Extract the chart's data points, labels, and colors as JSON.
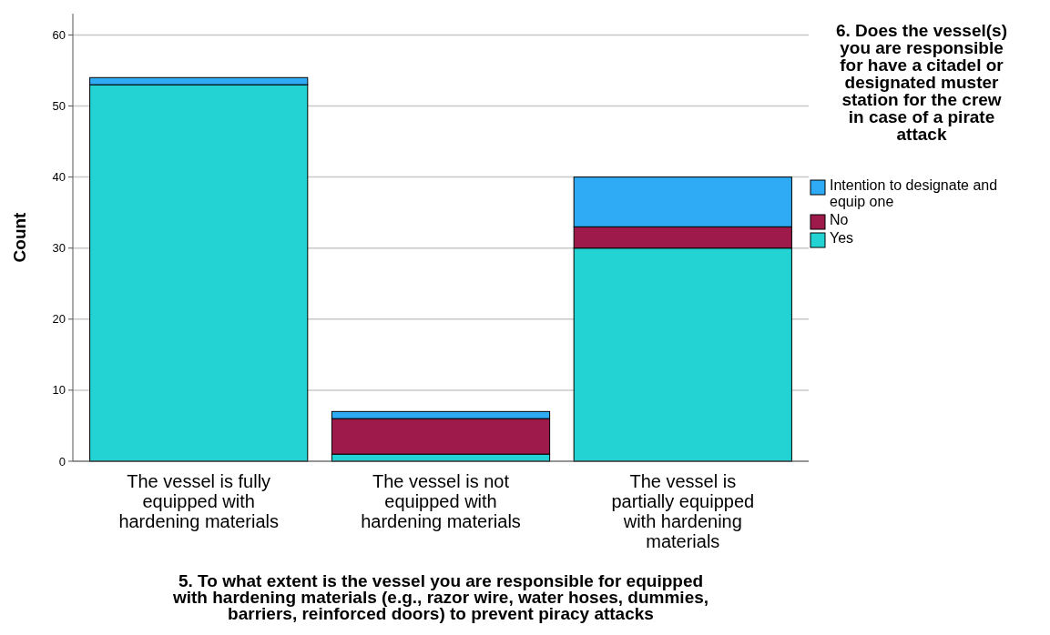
{
  "chart_data": {
    "type": "bar",
    "stacked": true,
    "xlabel": "5. To what extent is the vessel you are responsible for equipped with hardening materials (e.g., razor wire, water hoses, dummies, barriers, reinforced doors) to prevent piracy attacks",
    "ylabel": "Count",
    "legend_title": "6. Does the vessel(s) you are responsible for have a citadel or designated muster station for the crew in case of a pirate attack",
    "categories": [
      "The vessel is fully equipped with hardening materials",
      "The vessel is not equipped with hardening materials",
      "The vessel is partially equipped with hardening materials"
    ],
    "series": [
      {
        "name": "Yes",
        "color": "#23d3d3",
        "values": [
          53,
          1,
          30
        ]
      },
      {
        "name": "No",
        "color": "#9e1a4a",
        "values": [
          0,
          5,
          3
        ]
      },
      {
        "name": "Intention to designate and equip one",
        "color": "#2faaf5",
        "values": [
          1,
          1,
          7
        ]
      }
    ],
    "ylim": [
      0,
      63
    ],
    "yticks": [
      0,
      10,
      20,
      30,
      40,
      50,
      60
    ],
    "grid": "y",
    "legend": "right"
  }
}
